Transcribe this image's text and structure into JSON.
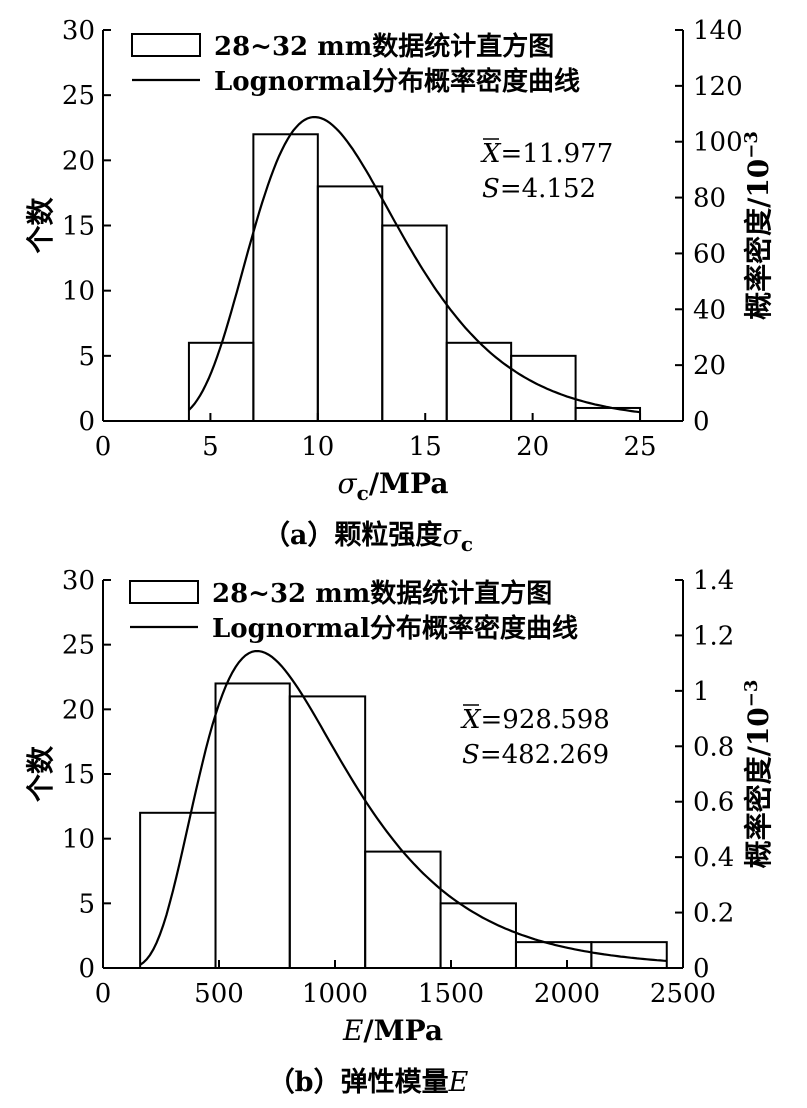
{
  "chart_data": [
    {
      "type": "bar",
      "subplot": "a",
      "caption_prefix": "（a）颗粒强度",
      "caption_symbol": "σ",
      "caption_sub": "c",
      "legend": [
        "28~32 mm数据统计直方图",
        "Lognormal分布概率密度曲线"
      ],
      "xlabel_symbol": "σ",
      "xlabel_sub": "c",
      "xlabel_unit": "/MPa",
      "ylabel": "个数",
      "y2label": "概率密度/10",
      "y2label_exp": "−3",
      "xlim": [
        0,
        27
      ],
      "ylim": [
        0,
        30
      ],
      "y2lim": [
        0,
        140
      ],
      "xticks": [
        0,
        5,
        10,
        15,
        20,
        25
      ],
      "yticks": [
        0,
        5,
        10,
        15,
        20,
        25,
        30
      ],
      "y2ticks": [
        0,
        20,
        40,
        60,
        80,
        100,
        120,
        140
      ],
      "bins": [
        {
          "x0": 4,
          "x1": 7,
          "count": 6
        },
        {
          "x0": 7,
          "x1": 10,
          "count": 22
        },
        {
          "x0": 10,
          "x1": 13,
          "count": 18
        },
        {
          "x0": 13,
          "x1": 16,
          "count": 15
        },
        {
          "x0": 16,
          "x1": 19,
          "count": 6
        },
        {
          "x0": 19,
          "x1": 22,
          "count": 5
        },
        {
          "x0": 22,
          "x1": 25,
          "count": 1
        }
      ],
      "curve": {
        "mu": 2.41,
        "sigma": 0.35,
        "x_start": 4,
        "x_end": 25,
        "scale": 1000
      },
      "stats": {
        "mean_label": "X",
        "mean_value": "=11.977",
        "sd_label": "S",
        "sd_value": "=4.152"
      }
    },
    {
      "type": "bar",
      "subplot": "b",
      "caption_prefix": "（b）弹性模量",
      "caption_symbol": "E",
      "caption_sub": "",
      "legend": [
        "28~32 mm数据统计直方图",
        "Lognormal分布概率密度曲线"
      ],
      "xlabel_symbol": "E",
      "xlabel_sub": "",
      "xlabel_unit": "/MPa",
      "ylabel": "个数",
      "y2label": "概率密度/10",
      "y2label_exp": "−3",
      "xlim": [
        0,
        2500
      ],
      "ylim": [
        0,
        30
      ],
      "y2lim": [
        0,
        1.4
      ],
      "xticks": [
        0,
        500,
        1000,
        1500,
        2000,
        2500
      ],
      "yticks": [
        0,
        5,
        10,
        15,
        20,
        25,
        30
      ],
      "y2ticks": [
        0,
        0.2,
        0.4,
        0.6,
        0.8,
        1.0,
        1.2,
        1.4
      ],
      "bins": [
        {
          "x0": 160,
          "x1": 485,
          "count": 12
        },
        {
          "x0": 485,
          "x1": 805,
          "count": 22
        },
        {
          "x0": 805,
          "x1": 1130,
          "count": 21
        },
        {
          "x0": 1130,
          "x1": 1455,
          "count": 9
        },
        {
          "x0": 1455,
          "x1": 1780,
          "count": 5
        },
        {
          "x0": 1780,
          "x1": 2105,
          "count": 2
        },
        {
          "x0": 2105,
          "x1": 2430,
          "count": 2
        }
      ],
      "curve": {
        "mu": 6.72,
        "sigma": 0.47,
        "x_start": 160,
        "x_end": 2430,
        "scale": 1000
      },
      "stats": {
        "mean_label": "X",
        "mean_value": "=928.598",
        "sd_label": "S",
        "sd_value": "=482.269"
      }
    }
  ]
}
